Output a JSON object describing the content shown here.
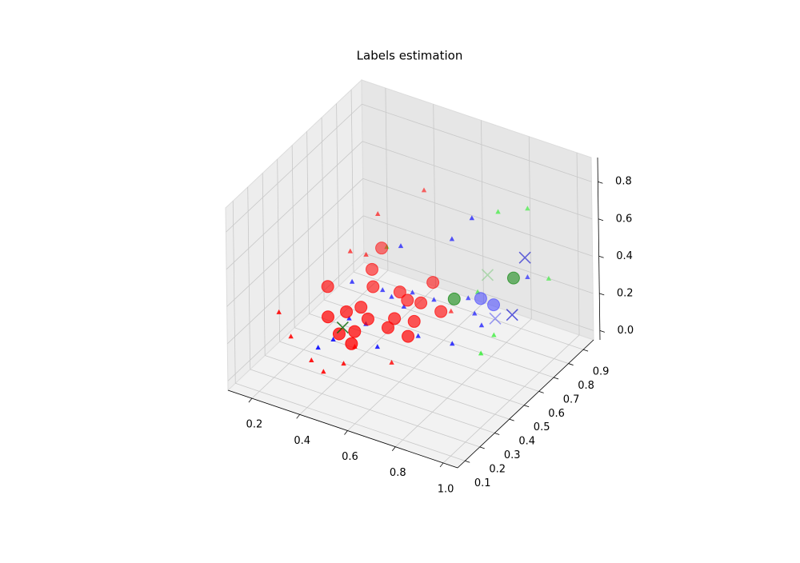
{
  "chart_data": {
    "type": "scatter3d",
    "title": "Labels estimation",
    "xlim": [
      0.1,
      1.06
    ],
    "ylim": [
      0.05,
      0.97
    ],
    "zlim": [
      -0.05,
      0.93
    ],
    "xticks": [
      0.2,
      0.4,
      0.6,
      0.8,
      {
        "value": 1,
        "label": "1.0"
      }
    ],
    "yticks": [
      0.1,
      0.2,
      0.3,
      0.4,
      0.5,
      0.6,
      0.7,
      0.8,
      0.9
    ],
    "zticks": [
      {
        "value": 0,
        "label": "0.0"
      },
      0.2,
      0.4,
      0.6,
      0.8
    ],
    "grid": true,
    "series": [
      {
        "marker": "^",
        "color": "#ff0000",
        "x": [
          0.4,
          0.28,
          0.18,
          0.37,
          0.55,
          0.32,
          0.43,
          0.2,
          0.44,
          0.26,
          0.62,
          0.21
        ],
        "y": [
          0.9,
          0.78,
          0.27,
          0.26,
          0.43,
          0.26,
          0.3,
          0.72,
          0.36,
          0.73,
          0.72,
          0.3
        ],
        "z": [
          0.52,
          0.43,
          0.24,
          0.01,
          0.01,
          0.05,
          0.05,
          0.24,
          0.1,
          0.24,
          0.1,
          0.1
        ]
      },
      {
        "marker": "^",
        "color": "#0000ff",
        "x": [
          0.7,
          0.59,
          0.4,
          0.25,
          0.34,
          0.44,
          0.53,
          0.63,
          0.7,
          0.83,
          0.33,
          0.35,
          0.4,
          0.51,
          0.6,
          0.73,
          0.39,
          0.33,
          0.76,
          0.46
        ],
        "y": [
          0.74,
          0.78,
          0.74,
          0.65,
          0.71,
          0.75,
          0.75,
          0.82,
          0.75,
          0.9,
          0.29,
          0.36,
          0.5,
          0.4,
          0.53,
          0.55,
          0.69,
          0.5,
          0.7,
          0.66
        ],
        "z": [
          0.62,
          0.43,
          0.34,
          0.15,
          0.1,
          0.1,
          0.1,
          0.1,
          0.1,
          0.24,
          0.1,
          0.1,
          0.1,
          0.1,
          0.1,
          0.1,
          0.1,
          0.1,
          0.1,
          0.1
        ]
      },
      {
        "marker": "^",
        "color": "#22ee22",
        "x": [
          0.76,
          0.84,
          0.9,
          0.85,
          0.83,
          0.36,
          0.67
        ],
        "y": [
          0.82,
          0.89,
          0.93,
          0.55,
          0.67,
          0.71,
          0.82
        ],
        "z": [
          0.62,
          0.62,
          0.24,
          0.1,
          0.1,
          0.34,
          0.15
        ]
      },
      {
        "marker": "o",
        "color": "#ff0000",
        "x": [
          0.16,
          0.24,
          0.2,
          0.3,
          0.39,
          0.39,
          0.4,
          0.45,
          0.47,
          0.59,
          0.54,
          0.48,
          0.42,
          0.3,
          0.47,
          0.35,
          0.33,
          0.5,
          0.26,
          0.57
        ],
        "y": [
          0.63,
          0.8,
          0.93,
          0.53,
          0.44,
          0.53,
          0.73,
          0.7,
          0.84,
          0.7,
          0.6,
          0.52,
          0.37,
          0.71,
          0.58,
          0.4,
          0.58,
          0.71,
          0.47,
          0.51
        ],
        "z": [
          0.1,
          0.1,
          0.1,
          0.1,
          0.1,
          0.1,
          0.1,
          0.1,
          0.1,
          0.1,
          0.1,
          0.1,
          0.1,
          0.1,
          0.1,
          0.1,
          0.1,
          0.1,
          0.1,
          0.1
        ]
      },
      {
        "marker": "o",
        "color": "#4444ff",
        "x": [
          0.67,
          0.73
        ],
        "y": [
          0.84,
          0.83
        ],
        "z": [
          0.1,
          0.1
        ]
      },
      {
        "marker": "o",
        "color": "#008000",
        "x": [
          0.59,
          0.79
        ],
        "y": [
          0.79,
          0.87
        ],
        "z": [
          0.1,
          0.24
        ]
      },
      {
        "marker": "x",
        "color": "#0000cc",
        "x": [
          0.82,
          0.82
        ],
        "y": [
          0.9,
          0.81
        ],
        "z": [
          0.34,
          0.1
        ]
      },
      {
        "marker": "x",
        "color": "#6666ee",
        "x": [
          0.78
        ],
        "y": [
          0.76
        ],
        "z": [
          0.1
        ]
      },
      {
        "marker": "x",
        "color": "#88cc88",
        "x": [
          0.7
        ],
        "y": [
          0.84
        ],
        "z": [
          0.24
        ]
      },
      {
        "marker": "x",
        "color": "#006400",
        "x": [
          0.34
        ],
        "y": [
          0.44
        ],
        "z": [
          0.1
        ]
      }
    ]
  }
}
